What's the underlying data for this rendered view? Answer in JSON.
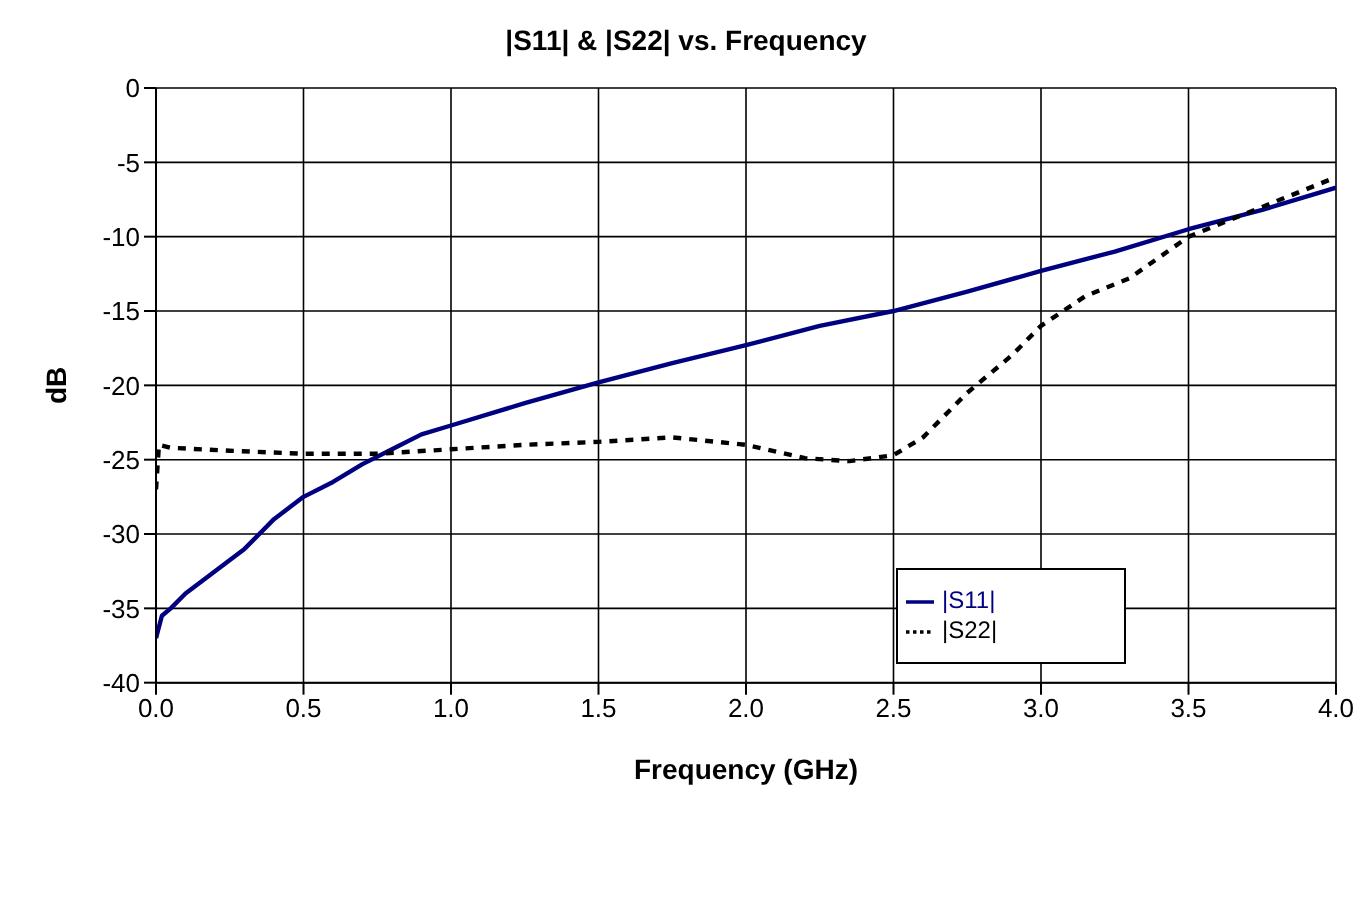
{
  "chart_data": {
    "type": "line",
    "title": "|S11| & |S22| vs. Frequency",
    "xlabel": "Frequency (GHz)",
    "ylabel": "dB",
    "xlim": [
      0,
      4
    ],
    "xticks": [
      {
        "value": 0,
        "label": "0.0"
      },
      {
        "value": 0.5,
        "label": "0.5"
      },
      {
        "value": 1,
        "label": "1.0"
      },
      {
        "value": 1.5,
        "label": "1.5"
      },
      {
        "value": 2,
        "label": "2.0"
      },
      {
        "value": 2.5,
        "label": "2.5"
      },
      {
        "value": 3,
        "label": "3.0"
      },
      {
        "value": 3.5,
        "label": "3.5"
      },
      {
        "value": 4,
        "label": "4.0"
      }
    ],
    "ylim": [
      -40,
      0
    ],
    "yticks": [
      -40,
      -35,
      -30,
      -25,
      -20,
      -15,
      -10,
      -5,
      0
    ],
    "grid": true,
    "legend": "bottom right",
    "marker": "none",
    "series": [
      {
        "name": "|S11|",
        "color": "#000080",
        "line_style": "solid",
        "x": [
          0,
          0.02,
          0.05,
          0.1,
          0.2,
          0.3,
          0.4,
          0.5,
          0.6,
          0.7,
          0.8,
          0.9,
          1.0,
          1.25,
          1.5,
          1.75,
          2.0,
          2.25,
          2.5,
          2.75,
          3.0,
          3.25,
          3.5,
          3.75,
          4.0
        ],
        "values": [
          -37,
          -35.5,
          -35,
          -34,
          -32.5,
          -31,
          -29,
          -27.5,
          -26.5,
          -25.3,
          -24.3,
          -23.3,
          -22.7,
          -21.2,
          -19.8,
          -18.5,
          -17.3,
          -16,
          -15,
          -13.7,
          -12.3,
          -11,
          -9.5,
          -8.2,
          -6.7
        ]
      },
      {
        "name": "|S22|",
        "color": "#000000",
        "line_style": "dotted",
        "x": [
          0,
          0.01,
          0.05,
          0.25,
          0.5,
          0.75,
          1.0,
          1.25,
          1.5,
          1.75,
          2.0,
          2.2,
          2.35,
          2.5,
          2.6,
          2.75,
          2.9,
          3.0,
          3.15,
          3.3,
          3.5,
          3.75,
          4.0
        ],
        "values": [
          -27,
          -24,
          -24.2,
          -24.4,
          -24.6,
          -24.6,
          -24.3,
          -24,
          -23.8,
          -23.5,
          -24,
          -24.9,
          -25.1,
          -24.7,
          -23.5,
          -20.5,
          -18,
          -16,
          -14,
          -12.8,
          -10,
          -8,
          -6
        ]
      }
    ]
  }
}
